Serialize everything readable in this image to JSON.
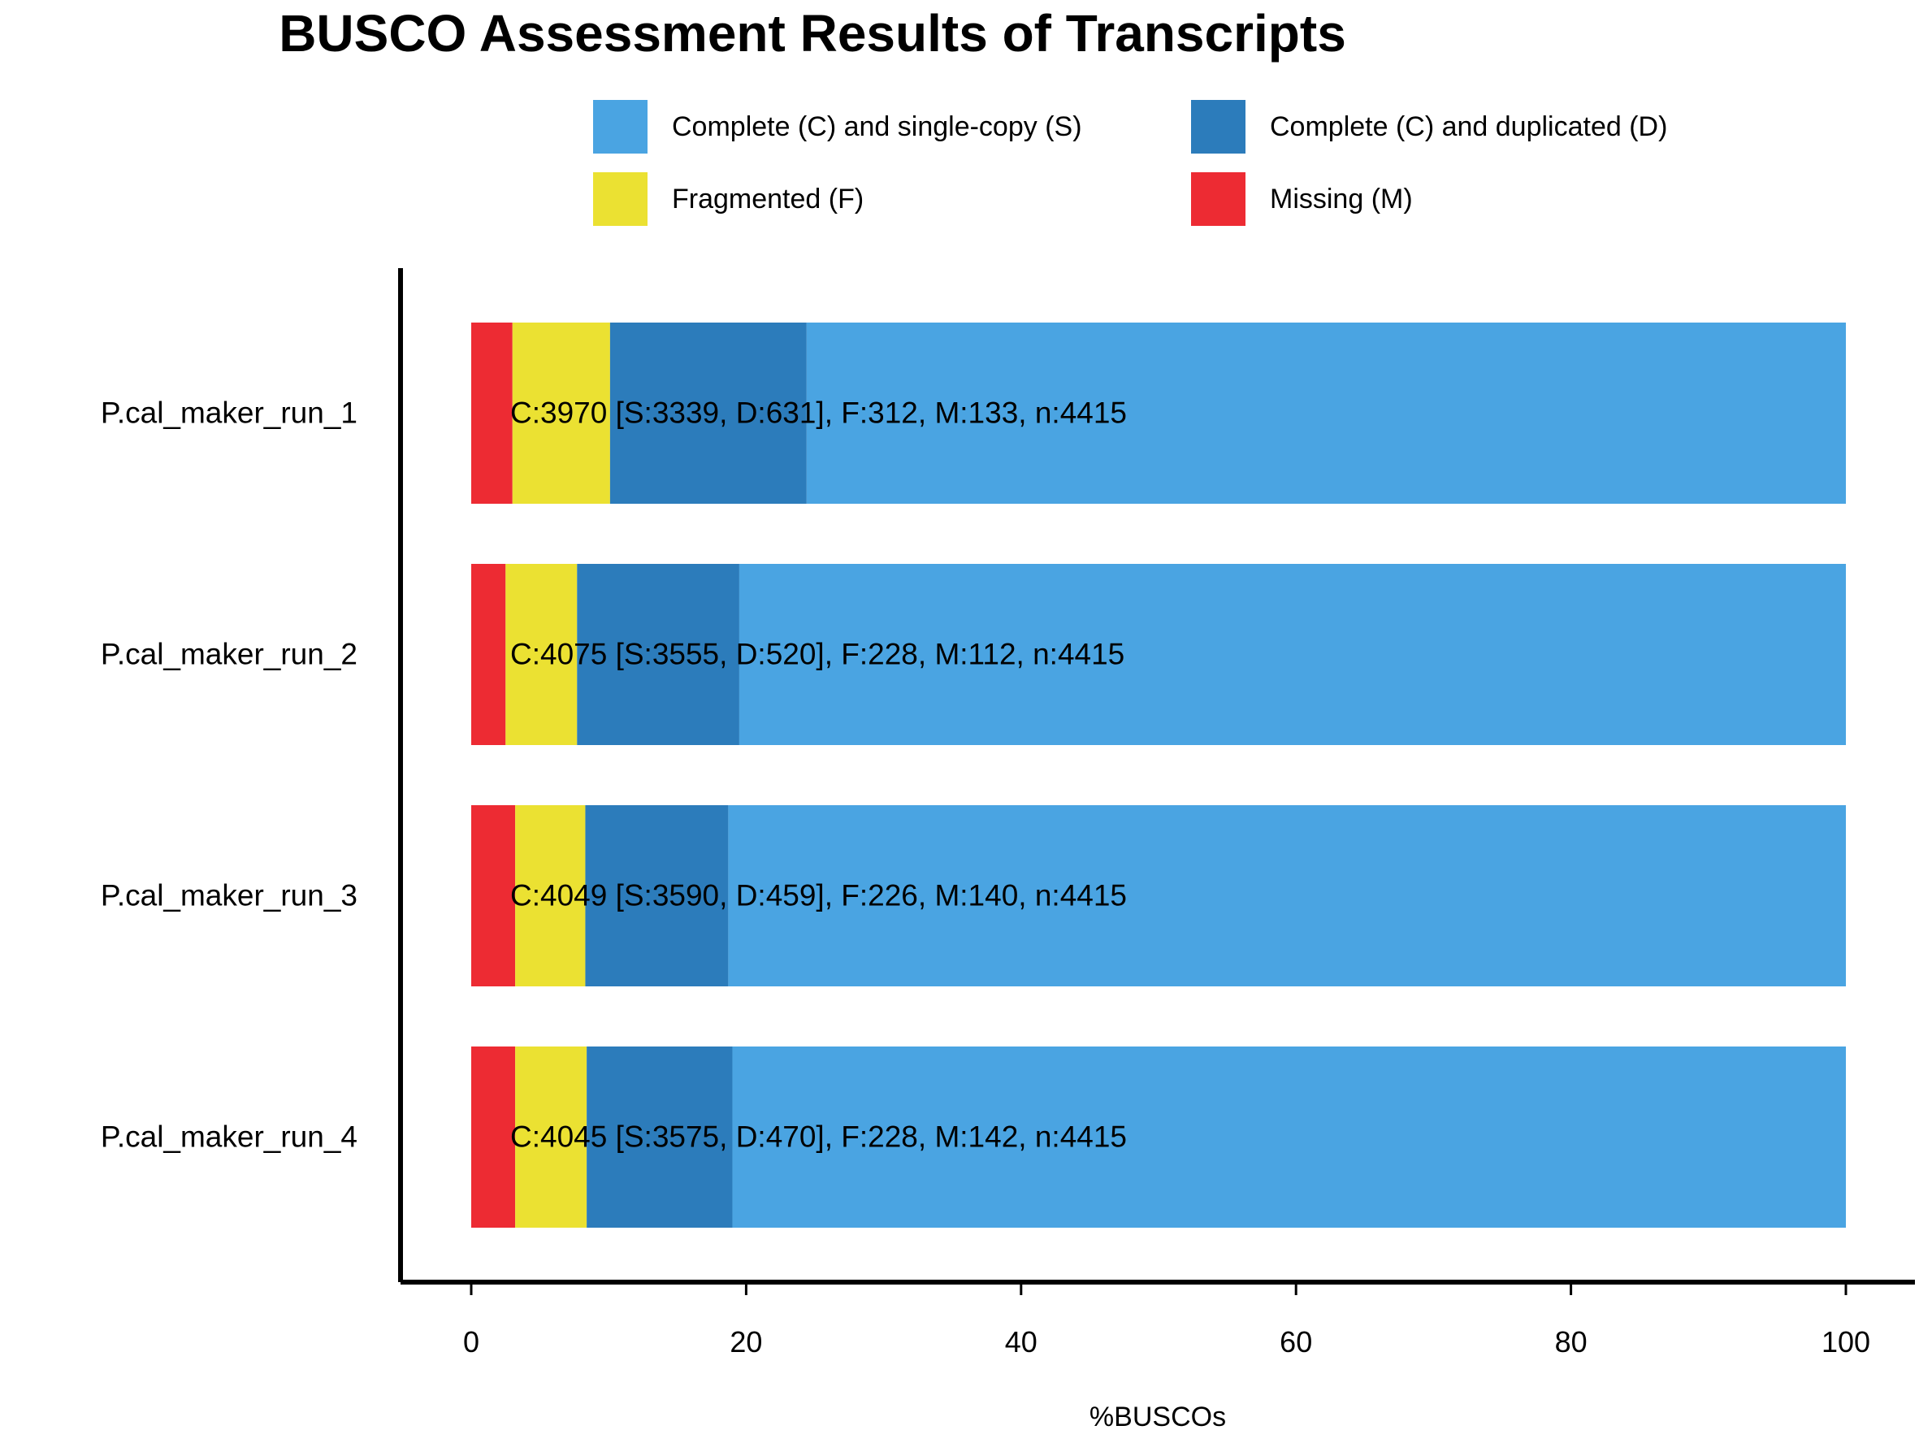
{
  "chart_data": {
    "type": "bar",
    "orientation": "horizontal",
    "stacked": true,
    "title": "BUSCO Assessment Results of Transcripts",
    "xlabel": "%BUSCOs",
    "ylabel": "",
    "xlim": [
      0,
      100
    ],
    "xticks": [
      0,
      20,
      40,
      60,
      80,
      100
    ],
    "grid": false,
    "legend_position": "top",
    "categories": [
      "P.cal_maker_run_1",
      "P.cal_maker_run_2",
      "P.cal_maker_run_3",
      "P.cal_maker_run_4"
    ],
    "series": [
      {
        "name": "Missing (M)",
        "key": "M",
        "color": "#ed2b33",
        "values": [
          3.0,
          2.5,
          3.2,
          3.2
        ]
      },
      {
        "name": "Fragmented (F)",
        "key": "F",
        "color": "#ebe132",
        "values": [
          7.1,
          5.2,
          5.1,
          5.2
        ]
      },
      {
        "name": "Complete (C) and duplicated (D)",
        "key": "D",
        "color": "#2c7cbb",
        "values": [
          14.3,
          11.8,
          10.4,
          10.6
        ]
      },
      {
        "name": "Complete (C) and single-copy (S)",
        "key": "S",
        "color": "#4aa4e2",
        "values": [
          75.6,
          80.5,
          81.3,
          81.0
        ]
      }
    ],
    "legend": [
      {
        "label": "Complete (C) and single-copy (S)",
        "color": "#4aa4e2"
      },
      {
        "label": "Complete (C) and duplicated (D)",
        "color": "#2c7cbb"
      },
      {
        "label": "Fragmented (F)",
        "color": "#ebe132"
      },
      {
        "label": "Missing (M)",
        "color": "#ed2b33"
      }
    ],
    "annotations": [
      "C:3970 [S:3339, D:631], F:312, M:133, n:4415",
      "C:4075 [S:3555, D:520], F:228, M:112, n:4415",
      "C:4049 [S:3590, D:459], F:226, M:140, n:4415",
      "C:4045 [S:3575, D:470], F:228, M:142, n:4415"
    ]
  }
}
